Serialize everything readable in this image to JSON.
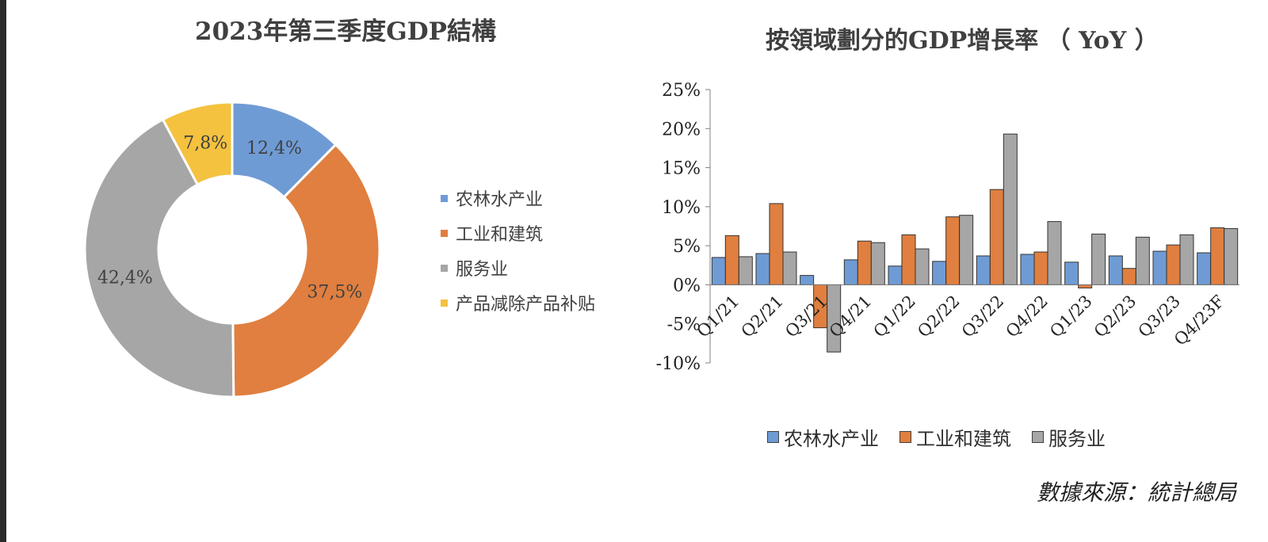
{
  "chart_data": [
    {
      "type": "pie",
      "variant": "donut",
      "title": "2023年第三季度GDP結構",
      "labels": [
        "农林水产业",
        "工业和建筑",
        "服务业",
        "产品减除产品补贴"
      ],
      "values": [
        12.4,
        37.5,
        42.4,
        7.8
      ],
      "value_labels": [
        "12,4%",
        "37,5%",
        "42,4%",
        "7,8%"
      ],
      "colors": [
        "#6f9bd4",
        "#e07f3f",
        "#a6a6a6",
        "#f4c23f"
      ],
      "legend_position": "right"
    },
    {
      "type": "bar",
      "title": "按領域劃分的GDP增長率 （ YoY ）",
      "categories": [
        "Q1/21",
        "Q2/21",
        "Q3/21",
        "Q4/21",
        "Q1/22",
        "Q2/22",
        "Q3/22",
        "Q4/22",
        "Q1/23",
        "Q2/23",
        "Q3/23",
        "Q4/23F"
      ],
      "series": [
        {
          "name": "农林水产业",
          "color": "#6f9bd4",
          "values": [
            3.5,
            4.0,
            1.2,
            3.2,
            2.4,
            3.0,
            3.7,
            3.9,
            2.9,
            3.7,
            4.3,
            4.1
          ]
        },
        {
          "name": "工业和建筑",
          "color": "#e07f3f",
          "values": [
            6.3,
            10.4,
            -5.5,
            5.6,
            6.4,
            8.7,
            12.2,
            4.2,
            -0.4,
            2.1,
            5.1,
            7.3
          ]
        },
        {
          "name": "服务业",
          "color": "#a6a6a6",
          "values": [
            3.6,
            4.2,
            -8.6,
            5.4,
            4.6,
            8.9,
            19.3,
            8.1,
            6.5,
            6.1,
            6.4,
            7.2
          ]
        }
      ],
      "ylim": [
        -10,
        25
      ],
      "yticks": [
        25,
        20,
        15,
        10,
        5,
        0,
        -5,
        -10
      ],
      "ytick_labels": [
        "25%",
        "20%",
        "15%",
        "10%",
        "5%",
        "0%",
        "-5%",
        "-10%"
      ],
      "legend_position": "bottom",
      "grid": false
    }
  ],
  "source": "數據來源：統計總局"
}
